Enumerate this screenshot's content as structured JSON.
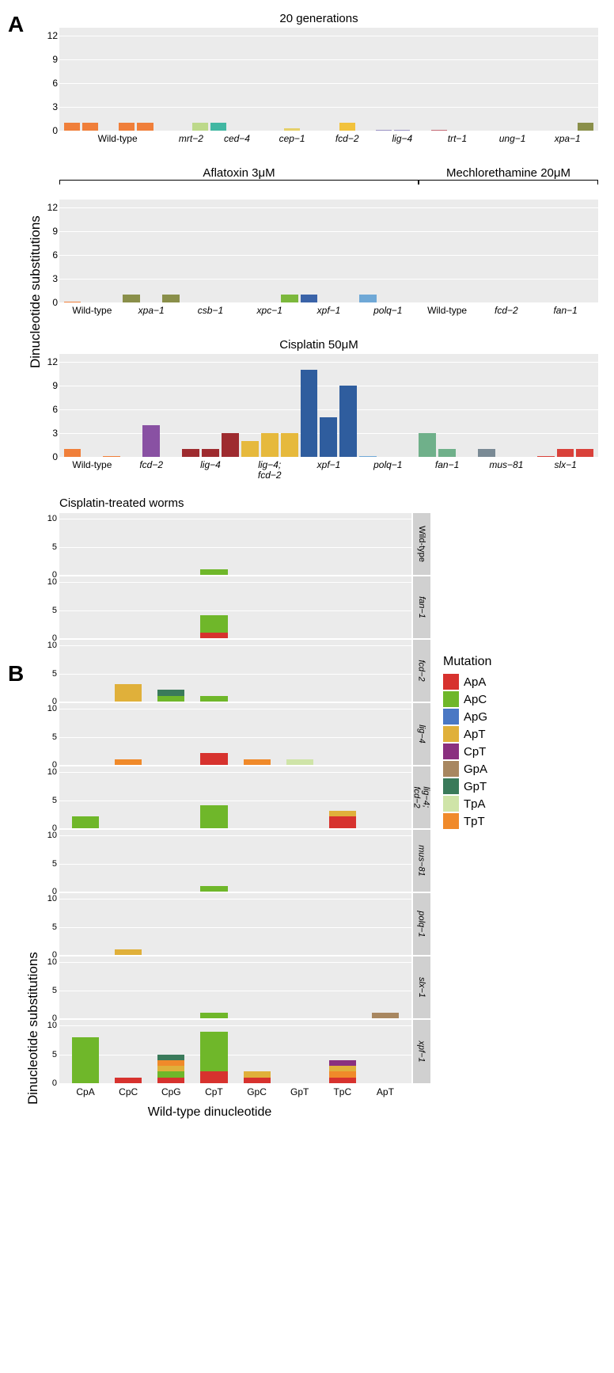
{
  "figure": {
    "panelA_letter": "A",
    "panelB_letter": "B",
    "ylabel_A": "Dinucleotide substitutions",
    "ylabel_B": "Dinucleotide substitutions",
    "xlabel_B": "Wild-type dinucleotide",
    "background_color": "#ebebeb",
    "grid_color": "#ffffff"
  },
  "panelA": {
    "ymax": 13,
    "yticks": [
      0,
      3,
      6,
      9,
      12
    ],
    "charts": [
      {
        "title": "20 generations",
        "brackets": [],
        "groups": [
          {
            "label": "Wild-type",
            "italic": false,
            "color": "#f07f3a",
            "values": [
              1,
              1,
              0,
              1,
              1,
              0
            ]
          },
          {
            "label": "mrt−2",
            "italic": true,
            "color": "#bdd98a",
            "values": [
              0,
              1
            ]
          },
          {
            "label": "ced−4",
            "italic": true,
            "color": "#41b7a2",
            "values": [
              1,
              0,
              0
            ]
          },
          {
            "label": "cep−1",
            "italic": true,
            "color": "#e5d06a",
            "values": [
              0,
              0.3,
              0
            ]
          },
          {
            "label": "fcd−2",
            "italic": true,
            "color": "#f2c23c",
            "values": [
              0,
              1,
              0
            ]
          },
          {
            "label": "lig−4",
            "italic": true,
            "color": "#9a93c4",
            "values": [
              0.1,
              0.1,
              0
            ]
          },
          {
            "label": "trt−1",
            "italic": true,
            "color": "#c46a76",
            "values": [
              0.1,
              0,
              0
            ]
          },
          {
            "label": "ung−1",
            "italic": true,
            "color": "#b0b0b0",
            "values": [
              0,
              0,
              0
            ]
          },
          {
            "label": "xpa−1",
            "italic": true,
            "color": "#8a8f4a",
            "values": [
              0,
              0,
              1
            ]
          }
        ]
      },
      {
        "title": "",
        "brackets": [
          {
            "label": "Aflatoxin 3μM",
            "start": 0,
            "end": 18
          },
          {
            "label": "Mechlorethamine 20μM",
            "start": 18,
            "end": 27
          }
        ],
        "groups": [
          {
            "label": "Wild-type",
            "italic": false,
            "color": "#f07f3a",
            "values": [
              0.1,
              0,
              0
            ]
          },
          {
            "label": "xpa−1",
            "italic": true,
            "color": "#8a8f4a",
            "values": [
              1,
              0,
              1
            ]
          },
          {
            "label": "csb−1",
            "italic": true,
            "color": "#b7a76a",
            "values": [
              0,
              0,
              0
            ]
          },
          {
            "label": "xpc−1",
            "italic": true,
            "color": "#7cb83c",
            "values": [
              0,
              0,
              1
            ]
          },
          {
            "label": "xpf−1",
            "italic": true,
            "color": "#3a63a8",
            "values": [
              1,
              0,
              0
            ]
          },
          {
            "label": "polq−1",
            "italic": true,
            "color": "#6fa8d6",
            "values": [
              1,
              0,
              0
            ]
          },
          {
            "label": "Wild-type",
            "italic": false,
            "color": "#f07f3a",
            "values": [
              0,
              0,
              0
            ]
          },
          {
            "label": "fcd−2",
            "italic": true,
            "color": "#f2c23c",
            "values": [
              0,
              0,
              0
            ]
          },
          {
            "label": "fan−1",
            "italic": true,
            "color": "#6fb08a",
            "values": [
              0,
              0,
              0
            ]
          }
        ]
      },
      {
        "title": "Cisplatin 50μM",
        "brackets": [],
        "groups": [
          {
            "label": "Wild-type",
            "italic": false,
            "color": "#f07f3a",
            "values": [
              1,
              0,
              0.1
            ]
          },
          {
            "label": "fcd−2",
            "italic": true,
            "color": "#8951a3",
            "values": [
              0,
              4,
              0
            ]
          },
          {
            "label": "lig−4",
            "italic": true,
            "color": "#9e2b2f",
            "values": [
              1,
              1,
              3
            ]
          },
          {
            "label": "lig−4;\nfcd−2",
            "italic": true,
            "color": "#e6b93c",
            "values": [
              2,
              3,
              3
            ]
          },
          {
            "label": "xpf−1",
            "italic": true,
            "color": "#2f5d9e",
            "values": [
              11,
              5,
              9
            ]
          },
          {
            "label": "polq−1",
            "italic": true,
            "color": "#6fa8d6",
            "values": [
              0.1,
              0,
              0
            ]
          },
          {
            "label": "fan−1",
            "italic": true,
            "color": "#6fb08a",
            "values": [
              3,
              1,
              0
            ]
          },
          {
            "label": "mus−81",
            "italic": true,
            "color": "#7a8a95",
            "values": [
              1,
              0,
              0
            ]
          },
          {
            "label": "slx−1",
            "italic": true,
            "color": "#d9413a",
            "values": [
              0.1,
              1,
              1
            ]
          }
        ]
      }
    ]
  },
  "panelB": {
    "title": "Cisplatin-treated worms",
    "ymax": 11,
    "yticks": [
      0,
      5,
      10
    ],
    "x_categories": [
      "CpA",
      "CpC",
      "CpG",
      "CpT",
      "GpC",
      "GpT",
      "TpC",
      "ApT"
    ],
    "mutation_colors": {
      "ApA": "#d7322e",
      "ApC": "#6fb72a",
      "ApG": "#4a78c4",
      "ApT": "#e0b03a",
      "CpT": "#8a307f",
      "GpA": "#a88760",
      "GpT": "#3a7a5a",
      "TpA": "#cfe4a8",
      "TpT": "#f08a2a"
    },
    "rows": [
      {
        "label": "Wild-type",
        "italic": false,
        "stacks": [
          [],
          [],
          [],
          [
            [
              "ApC",
              1
            ]
          ],
          [],
          [],
          [],
          []
        ]
      },
      {
        "label": "fan−1",
        "italic": true,
        "stacks": [
          [],
          [],
          [],
          [
            [
              "ApA",
              1
            ],
            [
              "ApC",
              3
            ]
          ],
          [],
          [],
          [],
          []
        ]
      },
      {
        "label": "fcd−2",
        "italic": true,
        "stacks": [
          [],
          [
            [
              "ApT",
              3
            ]
          ],
          [
            [
              "ApC",
              1
            ],
            [
              "GpT",
              1
            ]
          ],
          [
            [
              "ApC",
              1
            ]
          ],
          [],
          [],
          [],
          []
        ]
      },
      {
        "label": "lig−4",
        "italic": true,
        "stacks": [
          [],
          [
            [
              "TpT",
              1
            ]
          ],
          [],
          [
            [
              "ApA",
              2
            ]
          ],
          [
            [
              "TpT",
              1
            ]
          ],
          [
            [
              "TpA",
              1
            ]
          ],
          [],
          []
        ]
      },
      {
        "label": "lig−4;\nfcd−2",
        "italic": true,
        "stacks": [
          [
            [
              "ApC",
              2
            ]
          ],
          [],
          [],
          [
            [
              "ApC",
              4
            ]
          ],
          [],
          [],
          [
            [
              "ApA",
              2
            ],
            [
              "ApT",
              1
            ]
          ],
          []
        ]
      },
      {
        "label": "mus−81",
        "italic": true,
        "stacks": [
          [],
          [],
          [],
          [
            [
              "ApC",
              1
            ]
          ],
          [],
          [],
          [],
          []
        ]
      },
      {
        "label": "polq−1",
        "italic": true,
        "stacks": [
          [],
          [
            [
              "ApT",
              1
            ]
          ],
          [],
          [],
          [],
          [],
          [],
          []
        ]
      },
      {
        "label": "slx−1",
        "italic": true,
        "stacks": [
          [],
          [],
          [],
          [
            [
              "ApC",
              1
            ]
          ],
          [],
          [],
          [],
          [
            [
              "GpA",
              1
            ]
          ]
        ]
      },
      {
        "label": "xpf−1",
        "italic": true,
        "stacks": [
          [
            [
              "ApC",
              8
            ]
          ],
          [
            [
              "ApA",
              1
            ]
          ],
          [
            [
              "ApA",
              1
            ],
            [
              "ApC",
              1
            ],
            [
              "ApT",
              1
            ],
            [
              "TpT",
              1
            ],
            [
              "GpT",
              1
            ]
          ],
          [
            [
              "ApA",
              2
            ],
            [
              "ApC",
              7
            ]
          ],
          [
            [
              "ApA",
              1
            ],
            [
              "ApT",
              1
            ]
          ],
          [],
          [
            [
              "ApA",
              1
            ],
            [
              "TpT",
              1
            ],
            [
              "ApT",
              1
            ],
            [
              "CpT",
              1
            ]
          ],
          []
        ]
      }
    ],
    "legend_title": "Mutation",
    "legend_order": [
      "ApA",
      "ApC",
      "ApG",
      "ApT",
      "CpT",
      "GpA",
      "GpT",
      "TpA",
      "TpT"
    ]
  }
}
